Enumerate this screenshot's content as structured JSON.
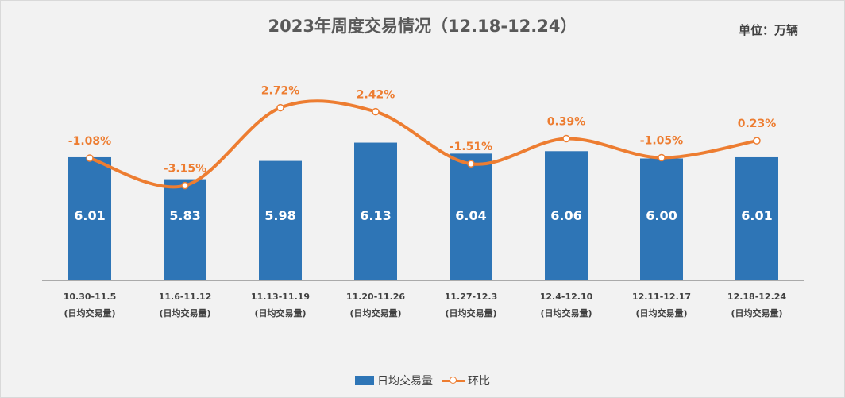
{
  "title": "2023年周度交易情况（12.18-12.24）",
  "unit": "单位：万辆",
  "colors": {
    "bar": "#2e75b6",
    "line": "#ed7d31",
    "bar_label": "#ffffff",
    "axis": "#404040"
  },
  "legend": {
    "bar_label": "日均交易量",
    "line_label": "环比"
  },
  "chart_data": {
    "type": "bar+line",
    "categories": [
      [
        "10.30-11.5",
        "(日均交易量)"
      ],
      [
        "11.6-11.12",
        "(日均交易量)"
      ],
      [
        "11.13-11.19",
        "(日均交易量)"
      ],
      [
        "11.20-11.26",
        "(日均交易量)"
      ],
      [
        "11.27-12.3",
        "(日均交易量)"
      ],
      [
        "12.4-12.10",
        "(日均交易量)"
      ],
      [
        "12.11-12.17",
        "(日均交易量)"
      ],
      [
        "12.18-12.24",
        "(日均交易量)"
      ]
    ],
    "series": [
      {
        "name": "日均交易量",
        "type": "bar",
        "values": [
          6.01,
          5.83,
          5.98,
          6.13,
          6.04,
          6.06,
          6.0,
          6.01
        ],
        "labels": [
          "6.01",
          "5.83",
          "5.98",
          "6.13",
          "6.04",
          "6.06",
          "6.00",
          "6.01"
        ]
      },
      {
        "name": "环比",
        "type": "line",
        "smooth": true,
        "values": [
          -1.08,
          -3.15,
          2.72,
          2.42,
          -1.51,
          0.39,
          -1.05,
          0.23
        ],
        "labels": [
          "-1.08%",
          "-3.15%",
          "2.72%",
          "2.42%",
          "-1.51%",
          "0.39%",
          "-1.05%",
          "0.23%"
        ]
      }
    ],
    "legend_position": "bottom",
    "grid": false
  }
}
